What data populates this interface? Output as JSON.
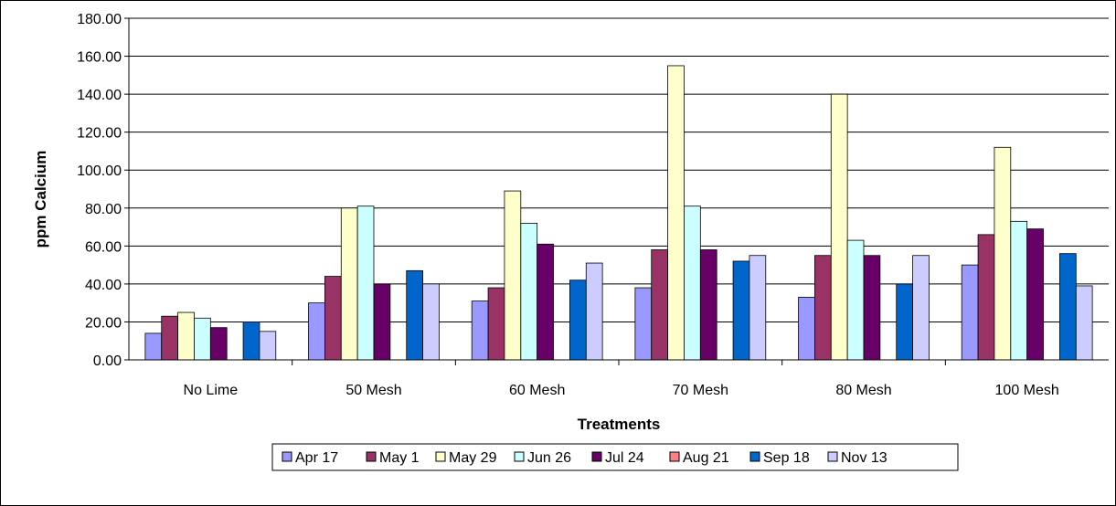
{
  "chart_data": {
    "type": "bar",
    "title": "",
    "xlabel": "Treatments",
    "ylabel": "ppm Calcium",
    "ylim": [
      0,
      180
    ],
    "ytick_step": 20,
    "ytick_labels": [
      "0.00",
      "20.00",
      "40.00",
      "60.00",
      "80.00",
      "100.00",
      "120.00",
      "140.00",
      "160.00",
      "180.00"
    ],
    "grid": "horizontal",
    "legend_position": "bottom",
    "categories": [
      "No Lime",
      "50 Mesh",
      "60 Mesh",
      "70 Mesh",
      "80 Mesh",
      "100 Mesh"
    ],
    "series": [
      {
        "name": "Apr 17",
        "color": "#9999ff",
        "values": [
          14,
          30,
          31,
          38,
          33,
          50
        ]
      },
      {
        "name": "May 1",
        "color": "#993366",
        "values": [
          23,
          44,
          38,
          58,
          55,
          66
        ]
      },
      {
        "name": "May 29",
        "color": "#ffffcc",
        "values": [
          25,
          80,
          89,
          155,
          140,
          112
        ]
      },
      {
        "name": "Jun 26",
        "color": "#ccffff",
        "values": [
          22,
          81,
          72,
          81,
          63,
          73
        ]
      },
      {
        "name": "Jul 24",
        "color": "#660066",
        "values": [
          17,
          40,
          61,
          58,
          55,
          69
        ]
      },
      {
        "name": "Aug 21",
        "color": "#ff8080",
        "values": [
          0,
          0,
          0,
          0,
          0,
          0
        ]
      },
      {
        "name": "Sep 18",
        "color": "#0066cc",
        "values": [
          20,
          47,
          42,
          52,
          40,
          56
        ]
      },
      {
        "name": "Nov 13",
        "color": "#ccccff",
        "values": [
          15,
          40,
          51,
          55,
          55,
          39
        ]
      }
    ]
  }
}
